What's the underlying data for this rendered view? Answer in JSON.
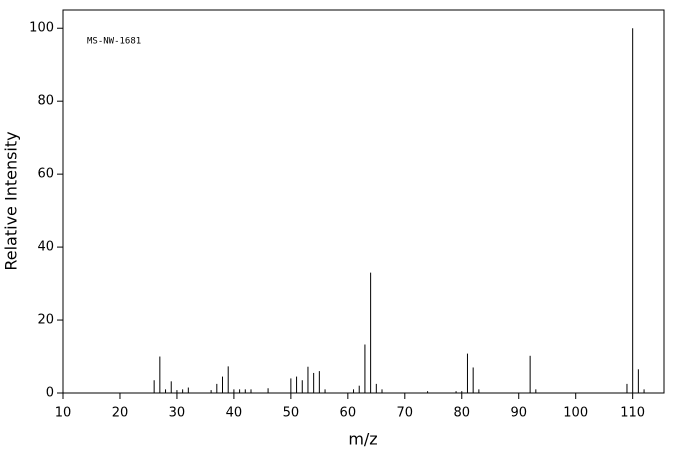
{
  "chart_data": {
    "type": "stem",
    "annotation": "MS-NW-1681",
    "xlabel": "m/z",
    "ylabel": "Relative Intensity",
    "x": [
      26,
      27,
      28,
      29,
      30,
      31,
      32,
      36,
      37,
      38,
      39,
      40,
      41,
      42,
      43,
      46,
      50,
      51,
      52,
      53,
      54,
      55,
      56,
      61,
      62,
      63,
      64,
      65,
      66,
      74,
      79,
      80,
      81,
      82,
      83,
      92,
      93,
      109,
      110,
      111,
      112
    ],
    "values": [
      3.5,
      10,
      1,
      3.2,
      0.8,
      1,
      1.5,
      0.8,
      2.5,
      4.5,
      7.3,
      1,
      1,
      1,
      1,
      1.3,
      4,
      4.5,
      3.5,
      7.2,
      5.5,
      6,
      1,
      1,
      2,
      13.3,
      33,
      2.5,
      1,
      0.5,
      0.5,
      0.5,
      10.8,
      7,
      1,
      10.2,
      1,
      2.5,
      100,
      6.5,
      1
    ],
    "color": "#000000",
    "xlim": [
      10,
      115.5
    ],
    "xticks": [
      10,
      20,
      30,
      40,
      50,
      60,
      70,
      80,
      90,
      100,
      110
    ],
    "ylim": [
      0,
      105
    ],
    "yticks": [
      0,
      20,
      40,
      60,
      80,
      100
    ]
  }
}
